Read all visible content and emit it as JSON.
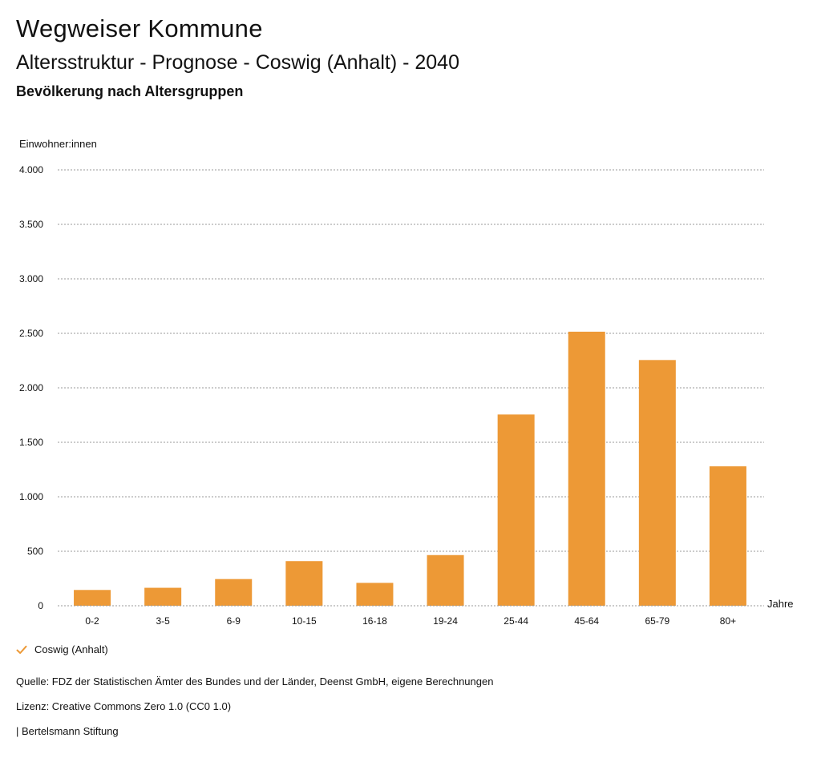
{
  "header": {
    "title": "Wegweiser Kommune",
    "subtitle": "Altersstruktur - Prognose - Coswig (Anhalt) - 2040",
    "chart_heading": "Bevölkerung nach Altersgruppen"
  },
  "chart_data": {
    "type": "bar",
    "title": "Bevölkerung nach Altersgruppen",
    "ylabel": "Einwohner:innen",
    "xlabel": "Jahre",
    "categories": [
      "0-2",
      "3-5",
      "6-9",
      "10-15",
      "16-18",
      "19-24",
      "25-44",
      "45-64",
      "65-79",
      "80+"
    ],
    "series": [
      {
        "name": "Coswig (Anhalt)",
        "values": [
          145,
          165,
          245,
          410,
          210,
          465,
          1755,
          2515,
          2255,
          1280
        ]
      }
    ],
    "ylim": [
      0,
      4000
    ],
    "yticks": [
      0,
      500,
      1000,
      1500,
      2000,
      2500,
      3000,
      3500,
      4000
    ],
    "ytick_labels": [
      "0",
      "500",
      "1.000",
      "1.500",
      "2.000",
      "2.500",
      "3.000",
      "3.500",
      "4.000"
    ],
    "grid": true,
    "bar_color": "#ED9936",
    "legend_position": "bottom-left"
  },
  "legend": {
    "label": "Coswig (Anhalt)",
    "icon": "check-icon",
    "color": "#ED9936"
  },
  "footer": {
    "source": "Quelle: FDZ der Statistischen Ämter des Bundes und der Länder, Deenst GmbH, eigene Berechnungen",
    "license": "Lizenz: Creative Commons Zero 1.0 (CC0 1.0)",
    "publisher": "| Bertelsmann Stiftung"
  }
}
